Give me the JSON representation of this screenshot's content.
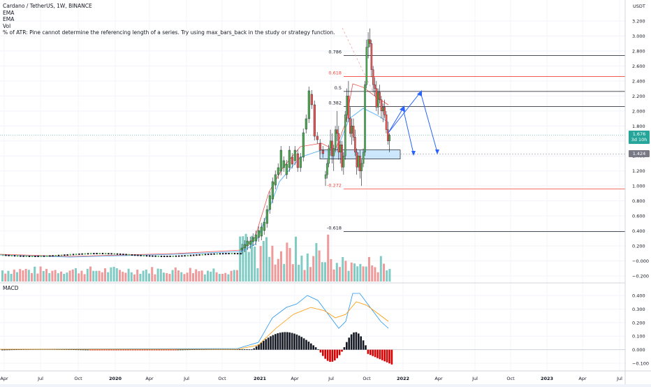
{
  "legend": {
    "symbol": "Cardano / TetherUS, 1W, BINANCE",
    "ind1": "EMA",
    "ind2": "EMA",
    "ind3": "Vol",
    "ind4": "% of ATR: Pine cannot determine the referencing length of a series. Try using max_bars_back in the study or strategy function."
  },
  "currency": "USDT",
  "macd_title": "MACD",
  "price_axis": [
    "3.200",
    "3.000",
    "2.800",
    "2.600",
    "2.400",
    "2.200",
    "2.000",
    "1.800",
    "1.600",
    "1.400",
    "1.200",
    "1.000",
    "0.800",
    "0.600",
    "0.400",
    "0.200",
    "−0.000",
    "−0.200"
  ],
  "macd_axis": [
    "0.400",
    "0.300",
    "0.200",
    "0.100",
    "0.000",
    "−0.100"
  ],
  "time_axis": [
    "Apr",
    "Jul",
    "Oct",
    "2020",
    "Apr",
    "Jul",
    "Oct",
    "2021",
    "Apr",
    "Jul",
    "Oct",
    "2022",
    "Apr",
    "Jul",
    "Oct",
    "2023",
    "Apr",
    "Jul"
  ],
  "badges": {
    "last_price": "1.676",
    "countdown": "3d 10h",
    "level": "1.424"
  },
  "fib_labels": [
    "0.786",
    "0.618",
    "0.5",
    "0.382",
    "-0.272",
    "-0.618"
  ],
  "colors": {
    "up": "#26a69a",
    "down": "#ef5350",
    "green_candle": "#4caf50",
    "red_candle": "#ef5350",
    "fib_red": "#f44336",
    "projection": "#2962ff",
    "ema": "#64b5f6",
    "signal": "#ff9800",
    "box": "#90caf9"
  },
  "chart_data": {
    "type": "candlestick",
    "price_range": [
      -0.25,
      3.25
    ],
    "macd_range": [
      -0.14,
      0.45
    ],
    "fib_levels": [
      {
        "label": "0.786",
        "value": 2.74
      },
      {
        "label": "0.618",
        "value": 2.46
      },
      {
        "label": "0.5",
        "value": 2.26
      },
      {
        "label": "0.382",
        "value": 2.06
      },
      {
        "label": "-0.272",
        "value": 0.96
      },
      {
        "label": "-0.618",
        "value": 0.39
      }
    ],
    "support_zone": [
      1.36,
      1.48
    ],
    "candles": [
      [
        1.1,
        1.2,
        1.0,
        1.15
      ],
      [
        1.15,
        1.35,
        1.1,
        1.3
      ],
      [
        1.3,
        1.55,
        1.25,
        1.5
      ],
      [
        1.5,
        1.75,
        1.4,
        1.6
      ],
      [
        1.6,
        1.7,
        1.3,
        1.4
      ],
      [
        1.4,
        1.55,
        1.2,
        1.5
      ],
      [
        1.5,
        1.8,
        1.45,
        1.75
      ],
      [
        1.75,
        2.0,
        1.6,
        1.7
      ],
      [
        1.7,
        1.8,
        1.35,
        1.45
      ],
      [
        1.45,
        1.6,
        1.3,
        1.55
      ],
      [
        1.55,
        1.6,
        1.2,
        1.25
      ],
      [
        1.25,
        1.45,
        1.15,
        1.4
      ],
      [
        1.4,
        2.0,
        1.35,
        1.95
      ],
      [
        1.95,
        2.3,
        1.85,
        2.2
      ],
      [
        2.2,
        2.4,
        1.85,
        1.9
      ],
      [
        1.9,
        2.05,
        1.65,
        1.7
      ],
      [
        1.7,
        1.9,
        1.55,
        1.8
      ],
      [
        1.8,
        1.9,
        1.6,
        1.65
      ],
      [
        1.65,
        1.75,
        1.4,
        1.45
      ],
      [
        1.45,
        1.5,
        1.15,
        1.25
      ],
      [
        1.25,
        1.45,
        1.2,
        1.4
      ],
      [
        1.4,
        1.48,
        1.1,
        1.2
      ],
      [
        1.2,
        1.35,
        1.0,
        1.3
      ],
      [
        1.3,
        1.5,
        1.25,
        1.45
      ],
      [
        1.45,
        2.4,
        1.4,
        2.35
      ],
      [
        2.35,
        2.95,
        2.3,
        2.85
      ],
      [
        2.85,
        3.05,
        2.7,
        2.95
      ],
      [
        2.95,
        3.1,
        2.85,
        2.9
      ],
      [
        2.9,
        2.95,
        2.45,
        2.55
      ],
      [
        2.55,
        2.6,
        2.25,
        2.35
      ],
      [
        2.35,
        2.45,
        2.2,
        2.3
      ],
      [
        2.3,
        2.4,
        2.0,
        2.05
      ],
      [
        2.05,
        2.3,
        1.95,
        2.25
      ],
      [
        2.25,
        2.35,
        2.1,
        2.15
      ],
      [
        2.15,
        2.2,
        1.9,
        2.0
      ],
      [
        2.0,
        2.1,
        1.85,
        2.05
      ],
      [
        2.05,
        2.15,
        1.9,
        1.95
      ],
      [
        1.95,
        2.0,
        1.7,
        1.75
      ],
      [
        1.75,
        1.85,
        1.55,
        1.6
      ],
      [
        1.6,
        1.7,
        1.45,
        1.68
      ]
    ]
  }
}
